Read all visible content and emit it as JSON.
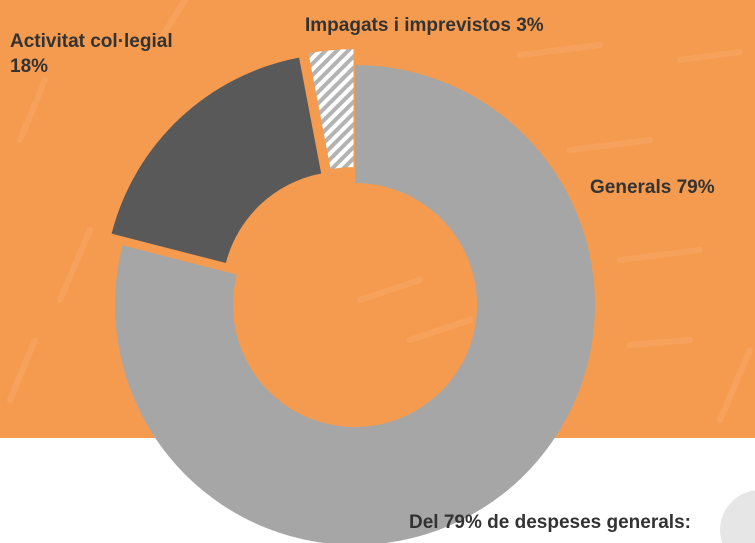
{
  "chart_data": {
    "type": "donut",
    "categories": [
      "Generals",
      "Activitat col·legial",
      "Impagats i imprevistos"
    ],
    "values": [
      79,
      18,
      3
    ],
    "value_labels": [
      "79%",
      "18%",
      "3%"
    ],
    "colors": [
      "#a6a6a6",
      "#595959",
      "#b3b3b3"
    ],
    "hatched": [
      false,
      false,
      true
    ],
    "annotation": "Del 79% de despeses generals:"
  }
}
